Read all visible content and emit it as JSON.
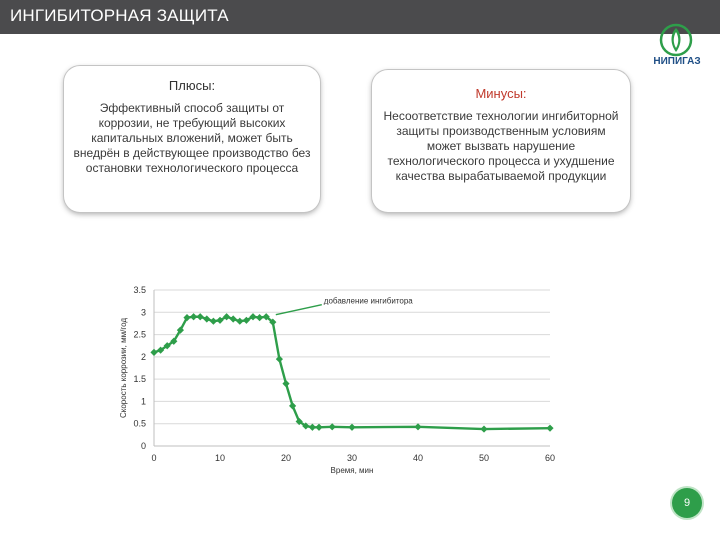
{
  "header": {
    "title": "ИНГИБИТОРНАЯ ЗАЩИТА"
  },
  "logo": {
    "text": "НИПИГАЗ",
    "color": "#1f4f86"
  },
  "pros": {
    "title": "Плюсы:",
    "text": "Эффективный способ защиты от коррозии, не требующий высоких капитальных вложений, может быть внедрён в действующее производство без остановки технологического процесса"
  },
  "cons": {
    "title": "Минусы:",
    "text": "Несоответствие технологии ингибиторной защиты производственным условиям может вызвать нарушение технологического процесса и ухудшение качества вырабатываемой продукции"
  },
  "chart_data": {
    "type": "line",
    "title": "",
    "xlabel": "Время, мин",
    "ylabel": "Скорость коррозии, мм/год",
    "xlim": [
      0,
      60
    ],
    "ylim": [
      0,
      3.5
    ],
    "x_ticks": [
      0,
      10,
      20,
      30,
      40,
      50,
      60
    ],
    "y_ticks": [
      0,
      0.5,
      1,
      1.5,
      2,
      2.5,
      3,
      3.5
    ],
    "x_tick_labels": [
      "0",
      "10",
      "20",
      "30",
      "40",
      "50",
      "60"
    ],
    "y_tick_labels": [
      "0",
      "0.5",
      "1",
      "1.5",
      "2",
      "2.5",
      "3",
      "3.5"
    ],
    "grid": true,
    "color": "#2e9e4a",
    "series": [
      {
        "x": [
          0,
          1,
          2,
          3,
          4,
          5,
          6,
          7,
          8,
          9,
          10,
          11,
          12,
          13,
          14,
          15,
          16,
          17,
          18,
          19,
          20,
          21,
          22,
          23,
          24,
          25,
          27,
          30,
          40,
          50,
          60
        ],
        "y": [
          2.1,
          2.15,
          2.25,
          2.35,
          2.6,
          2.88,
          2.9,
          2.9,
          2.85,
          2.8,
          2.82,
          2.9,
          2.85,
          2.8,
          2.82,
          2.9,
          2.88,
          2.9,
          2.78,
          1.95,
          1.4,
          0.9,
          0.55,
          0.45,
          0.42,
          0.42,
          0.43,
          0.42,
          0.43,
          0.38,
          0.4
        ]
      }
    ],
    "annotation": {
      "text": "добавление ингибитора",
      "x": 18,
      "y": 2.9
    }
  },
  "page": {
    "number": "9"
  }
}
